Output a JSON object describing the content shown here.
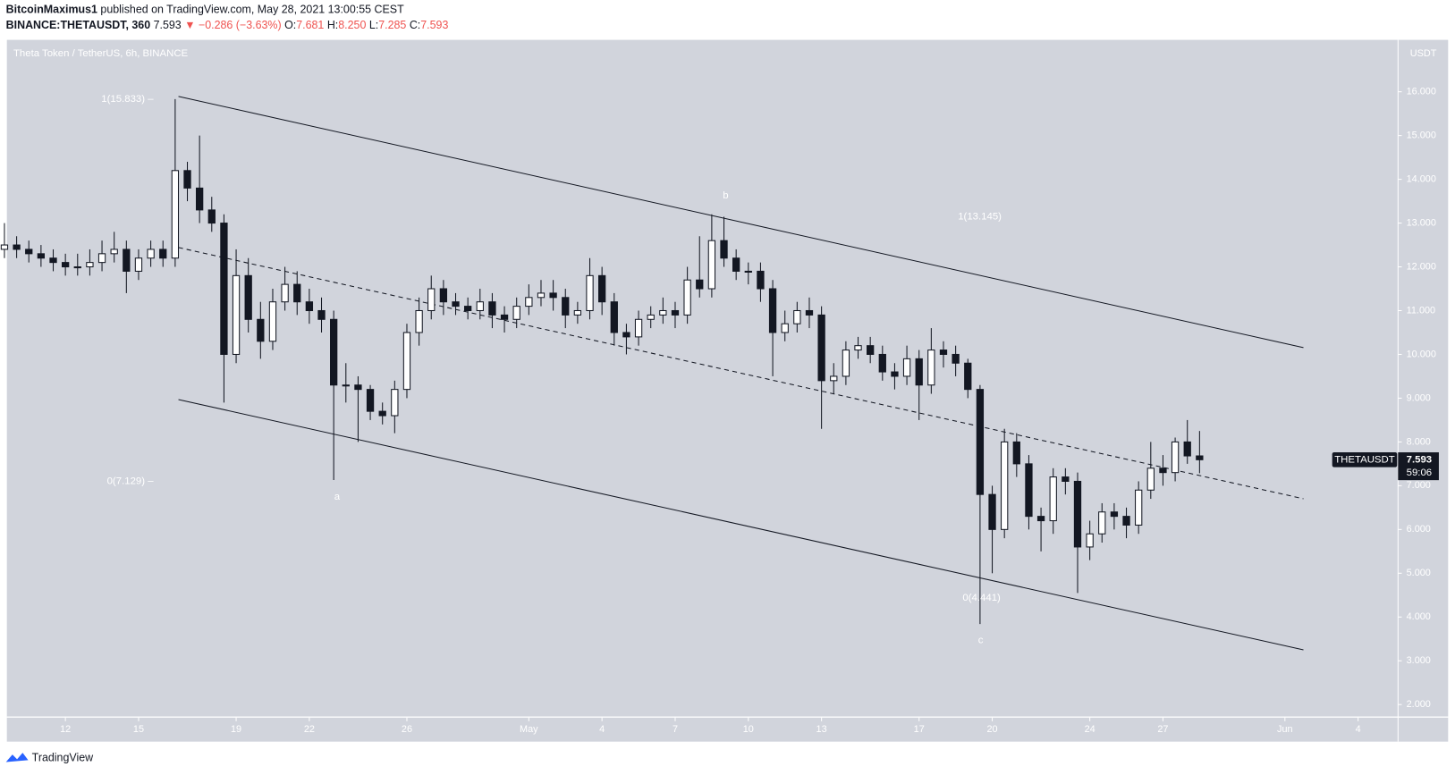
{
  "header": {
    "author": "BitcoinMaximus1",
    "published": "published on TradingView.com, May 28, 2021 13:00:55 CEST",
    "symbol": "BINANCE:THETAUSDT, 360",
    "last": "7.593",
    "change": "▼ −0.286 (−3.63%)",
    "ohlc": [
      {
        "label": "O:",
        "value": "7.681"
      },
      {
        "label": "H:",
        "value": "8.250"
      },
      {
        "label": "L:",
        "value": "7.285"
      },
      {
        "label": "C:",
        "value": "7.593"
      }
    ],
    "logo": "TradingView"
  },
  "chart_data": {
    "type": "candlestick",
    "title": "Theta Token / TetherUS, 6h, BINANCE",
    "currency": "USDT",
    "symbol_tag": "THETAUSDT",
    "countdown": "59:06",
    "annotations": [
      "1(15.833) –",
      "0(7.129) –",
      "1(13.145)",
      "0(4.441)",
      "a",
      "b",
      "c"
    ],
    "up_color": "#ffffff",
    "down_color": "#131722",
    "outline_color": "#131722",
    "xlim": [
      -2.4,
      54.6
    ],
    "ylim": [
      1.725,
      17.186
    ],
    "xticks": [
      {
        "value": 0,
        "label": "12"
      },
      {
        "value": 3,
        "label": "15"
      },
      {
        "value": 7,
        "label": "19"
      },
      {
        "value": 10,
        "label": "22"
      },
      {
        "value": 14,
        "label": "26"
      },
      {
        "value": 19,
        "label": "May"
      },
      {
        "value": 22,
        "label": "4"
      },
      {
        "value": 25,
        "label": "7"
      },
      {
        "value": 28,
        "label": "10"
      },
      {
        "value": 31,
        "label": "13"
      },
      {
        "value": 35,
        "label": "17"
      },
      {
        "value": 38,
        "label": "20"
      },
      {
        "value": 42,
        "label": "24"
      },
      {
        "value": 45,
        "label": "27"
      },
      {
        "value": 50,
        "label": "Jun"
      },
      {
        "value": 53,
        "label": "4"
      }
    ],
    "yticks": [
      {
        "value": 16,
        "label": "16.000"
      },
      {
        "value": 15,
        "label": "15.000"
      },
      {
        "value": 14,
        "label": "14.000"
      },
      {
        "value": 13,
        "label": "13.000"
      },
      {
        "value": 12,
        "label": "12.000"
      },
      {
        "value": 11,
        "label": "11.000"
      },
      {
        "value": 10,
        "label": "10.000"
      },
      {
        "value": 9,
        "label": "9.000"
      },
      {
        "value": 8,
        "label": "8.000"
      },
      {
        "value": 7,
        "label": "7.000"
      },
      {
        "value": 6,
        "label": "6.000"
      },
      {
        "value": 5,
        "label": "5.000"
      },
      {
        "value": 4,
        "label": "4.000"
      },
      {
        "value": 3,
        "label": "3.000"
      },
      {
        "value": 2,
        "label": "2.000"
      }
    ],
    "x": [
      -2.5,
      -2,
      -1.5,
      -1,
      -0.5,
      0,
      0.5,
      1,
      1.5,
      2,
      2.5,
      3,
      3.5,
      4,
      4.5,
      5,
      5.5,
      6,
      6.5,
      7,
      7.5,
      8,
      8.5,
      9,
      9.5,
      10,
      10.5,
      11,
      11.5,
      12,
      12.5,
      13,
      13.5,
      14,
      14.5,
      15,
      15.5,
      16,
      16.5,
      17,
      17.5,
      18,
      18.5,
      19,
      19.5,
      20,
      20.5,
      21,
      21.5,
      22,
      22.5,
      23,
      23.5,
      24,
      24.5,
      25,
      25.5,
      26,
      26.5,
      27,
      27.5,
      28,
      28.5,
      29,
      29.5,
      30,
      30.5,
      31,
      31.5,
      32,
      32.5,
      33,
      33.5,
      34,
      34.5,
      35,
      35.5,
      36,
      36.5,
      37,
      37.5,
      38,
      38.5,
      39,
      39.5,
      40,
      40.5,
      41,
      41.5,
      42,
      42.5,
      43,
      43.5,
      44,
      44.5,
      45,
      45.5,
      46,
      46.5
    ],
    "open": [
      12.4,
      12.5,
      12.4,
      12.3,
      12.2,
      12.1,
      12.0,
      12.0,
      12.1,
      12.3,
      12.4,
      11.9,
      12.2,
      12.4,
      12.2,
      14.2,
      13.8,
      13.3,
      13.0,
      10.0,
      11.8,
      10.8,
      10.3,
      11.2,
      11.6,
      11.2,
      11.0,
      10.8,
      9.3,
      9.3,
      9.2,
      8.7,
      8.6,
      9.2,
      10.5,
      11.0,
      11.5,
      11.2,
      11.1,
      11.0,
      11.2,
      10.9,
      10.8,
      11.1,
      11.3,
      11.4,
      11.3,
      10.9,
      11.0,
      11.8,
      11.2,
      10.5,
      10.4,
      10.8,
      10.9,
      11.0,
      10.9,
      11.7,
      11.5,
      12.6,
      12.2,
      11.9,
      11.9,
      11.5,
      10.5,
      10.7,
      11.0,
      10.9,
      9.4,
      9.5,
      10.1,
      10.2,
      10.0,
      9.6,
      9.5,
      9.9,
      9.3,
      10.1,
      10.0,
      9.8,
      9.2,
      6.8,
      6.0,
      8.0,
      7.5,
      6.3,
      6.2,
      7.2,
      7.1,
      5.6,
      5.9,
      6.4,
      6.3,
      6.1,
      6.9,
      7.4,
      7.3,
      8.0,
      7.681
    ],
    "high": [
      13.0,
      12.7,
      12.6,
      12.5,
      12.4,
      12.3,
      12.3,
      12.4,
      12.6,
      12.8,
      12.6,
      12.4,
      12.6,
      12.6,
      15.833,
      14.4,
      15.0,
      13.6,
      13.2,
      12.4,
      12.2,
      11.2,
      11.5,
      12.0,
      11.9,
      11.5,
      11.3,
      11.0,
      9.8,
      9.5,
      9.3,
      8.9,
      9.4,
      10.7,
      11.3,
      11.8,
      11.7,
      11.4,
      11.3,
      11.5,
      11.4,
      11.1,
      11.3,
      11.6,
      11.7,
      11.7,
      11.5,
      11.2,
      12.2,
      12.0,
      11.4,
      10.7,
      11.0,
      11.1,
      11.3,
      11.2,
      12.0,
      12.7,
      13.2,
      13.145,
      12.4,
      12.1,
      12.1,
      11.7,
      11.0,
      11.2,
      11.3,
      11.1,
      9.8,
      10.3,
      10.4,
      10.4,
      10.2,
      9.8,
      10.2,
      10.1,
      10.6,
      10.3,
      10.2,
      9.9,
      9.3,
      7.0,
      8.3,
      8.2,
      7.7,
      6.5,
      7.4,
      7.4,
      7.3,
      6.2,
      6.6,
      6.6,
      6.5,
      7.1,
      8.0,
      7.7,
      8.1,
      8.5,
      8.25
    ],
    "low": [
      12.2,
      12.2,
      12.1,
      12.0,
      11.9,
      11.8,
      11.8,
      11.8,
      11.9,
      12.1,
      11.4,
      11.7,
      12.0,
      12.0,
      12.0,
      13.5,
      13.0,
      12.8,
      8.9,
      9.8,
      10.5,
      9.9,
      10.1,
      11.0,
      10.9,
      10.7,
      10.5,
      7.129,
      8.9,
      8.0,
      8.5,
      8.4,
      8.2,
      9.0,
      10.2,
      10.8,
      10.9,
      10.9,
      10.8,
      10.8,
      10.6,
      10.5,
      10.6,
      10.9,
      11.1,
      11.0,
      10.6,
      10.7,
      10.8,
      10.9,
      10.2,
      10.0,
      10.2,
      10.6,
      10.7,
      10.6,
      10.7,
      11.3,
      11.3,
      12.0,
      11.7,
      11.6,
      11.2,
      9.5,
      10.3,
      10.5,
      10.6,
      8.3,
      9.1,
      9.3,
      9.9,
      9.8,
      9.4,
      9.2,
      9.3,
      8.5,
      9.1,
      9.7,
      9.5,
      9.0,
      3.84,
      5.0,
      5.8,
      7.2,
      6.0,
      5.5,
      5.9,
      6.8,
      4.55,
      5.3,
      5.7,
      6.0,
      5.8,
      5.9,
      6.7,
      7.0,
      7.1,
      7.5,
      7.285
    ],
    "close": [
      12.5,
      12.4,
      12.3,
      12.2,
      12.1,
      12.0,
      12.0,
      12.1,
      12.3,
      12.4,
      11.9,
      12.2,
      12.4,
      12.2,
      14.2,
      13.8,
      13.3,
      13.0,
      10.0,
      11.8,
      10.8,
      10.3,
      11.2,
      11.6,
      11.2,
      11.0,
      10.8,
      9.3,
      9.3,
      9.2,
      8.7,
      8.6,
      9.2,
      10.5,
      11.0,
      11.5,
      11.2,
      11.1,
      11.0,
      11.2,
      10.9,
      10.8,
      11.1,
      11.3,
      11.4,
      11.3,
      10.9,
      11.0,
      11.8,
      11.2,
      10.5,
      10.4,
      10.8,
      10.9,
      11.0,
      10.9,
      11.7,
      11.5,
      12.6,
      12.2,
      11.9,
      11.9,
      11.5,
      10.5,
      10.7,
      11.0,
      10.9,
      9.4,
      9.5,
      10.1,
      10.2,
      10.0,
      9.6,
      9.5,
      9.9,
      9.3,
      10.1,
      10.0,
      9.8,
      9.2,
      6.8,
      6.0,
      8.0,
      7.5,
      6.3,
      6.2,
      7.2,
      7.1,
      5.6,
      5.9,
      6.4,
      6.3,
      6.1,
      6.9,
      7.4,
      7.3,
      8.0,
      7.681,
      7.593
    ]
  }
}
